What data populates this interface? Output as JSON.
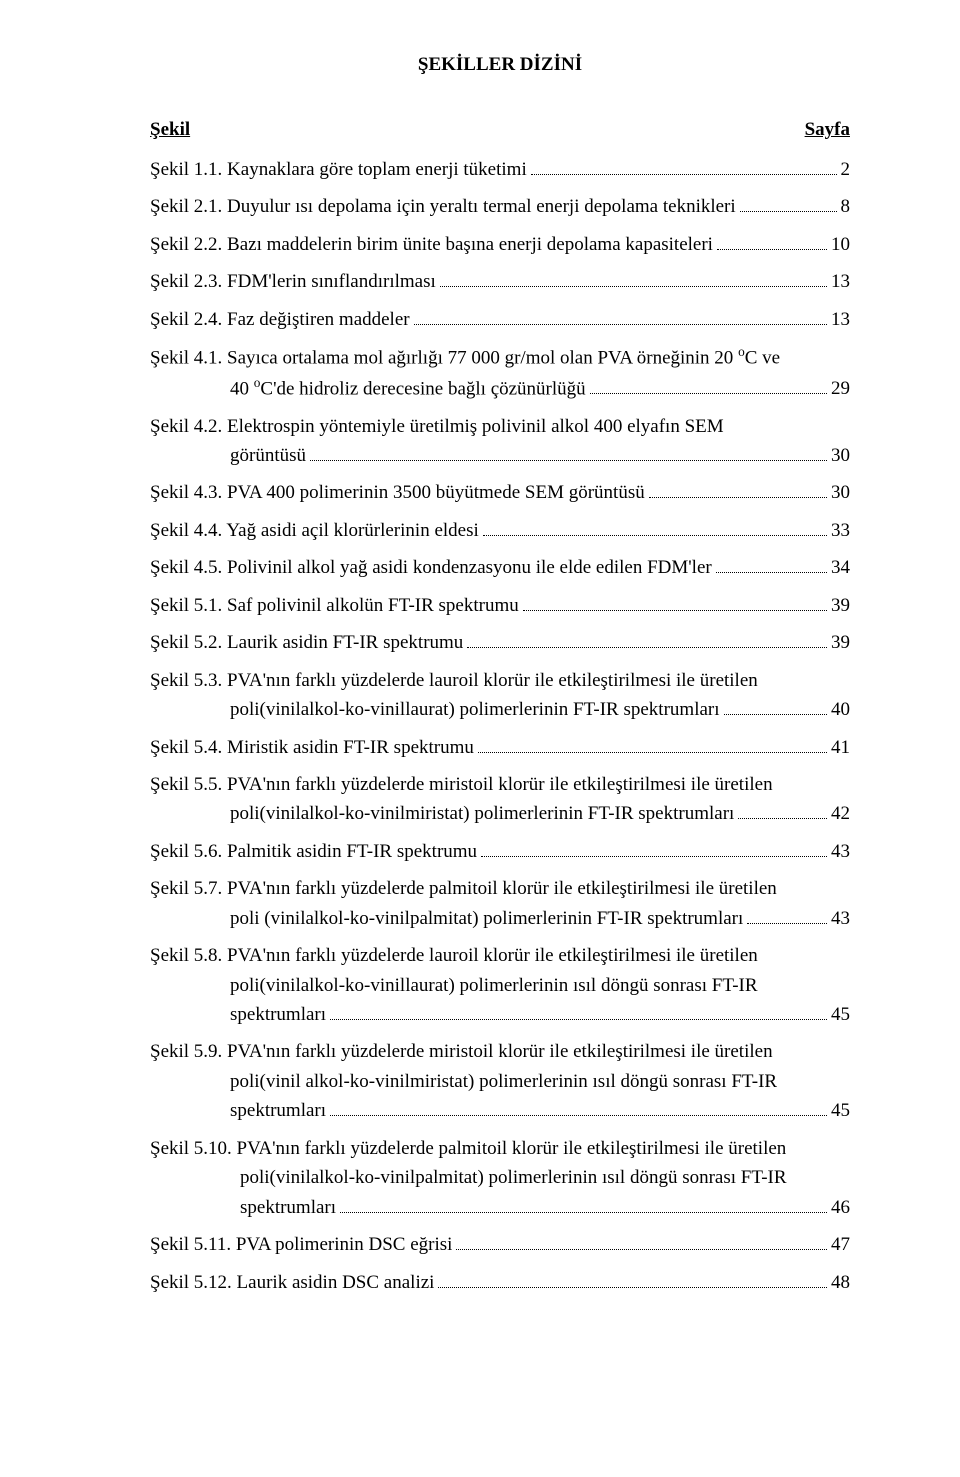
{
  "title": "ŞEKİLLER DİZİNİ",
  "header": {
    "left": "Şekil",
    "right": "Sayfa"
  },
  "entries": [
    {
      "label": "Şekil 1.1. Kaynaklara göre toplam enerji tüketimi",
      "page": "2"
    },
    {
      "label": "Şekil 2.1. Duyulur ısı depolama için yeraltı termal enerji depolama teknikleri",
      "page": "8"
    },
    {
      "label": "Şekil 2.2. Bazı maddelerin birim ünite başına enerji depolama kapasiteleri",
      "page": "10"
    },
    {
      "label": "Şekil 2.3. FDM'lerin sınıflandırılması",
      "page": "13"
    },
    {
      "label": "Şekil 2.4. Faz değiştiren maddeler",
      "page": "13"
    },
    {
      "label": "Şekil 4.1. Sayıca ortalama mol ağırlığı 77 000 gr/mol olan PVA örneğinin 20 ",
      "cont": [
        "40 °C'de hidroliz derecesine bağlı çözünürlüğü"
      ],
      "tailA": "°C ve",
      "page": "29",
      "special": "sup1"
    },
    {
      "label": "Şekil 4.2. Elektrospin yöntemiyle üretilmiş polivinil alkol 400 elyafın SEM",
      "cont": [
        "görüntüsü"
      ],
      "page": "30"
    },
    {
      "label": "Şekil 4.3. PVA 400 polimerinin 3500 büyütmede SEM görüntüsü",
      "page": "30"
    },
    {
      "label": "Şekil 4.4. Yağ asidi açil klorürlerinin eldesi",
      "page": "33"
    },
    {
      "label": "Şekil 4.5. Polivinil alkol yağ asidi kondenzasyonu ile elde edilen FDM'ler",
      "page": "34"
    },
    {
      "label": "Şekil 5.1. Saf polivinil alkolün FT-IR spektrumu",
      "page": "39"
    },
    {
      "label": "Şekil 5.2. Laurik asidin FT-IR spektrumu",
      "page": "39"
    },
    {
      "label": "Şekil 5.3. PVA'nın farklı yüzdelerde lauroil klorür ile etkileştirilmesi ile üretilen",
      "cont": [
        "poli(vinilalkol-ko-vinillaurat) polimerlerinin FT-IR spektrumları"
      ],
      "page": "40"
    },
    {
      "label": "Şekil 5.4. Miristik asidin FT-IR spektrumu",
      "page": "41"
    },
    {
      "label": "Şekil 5.5. PVA'nın farklı yüzdelerde miristoil klorür ile etkileştirilmesi ile üretilen",
      "cont": [
        "poli(vinilalkol-ko-vinilmiristat) polimerlerinin FT-IR spektrumları"
      ],
      "page": "42"
    },
    {
      "label": "Şekil 5.6. Palmitik asidin FT-IR spektrumu",
      "page": "43"
    },
    {
      "label": "Şekil 5.7. PVA'nın farklı yüzdelerde palmitoil klorür ile etkileştirilmesi ile üretilen",
      "cont": [
        "poli (vinilalkol-ko-vinilpalmitat) polimerlerinin FT-IR spektrumları"
      ],
      "page": "43"
    },
    {
      "label": "Şekil 5.8. PVA'nın farklı yüzdelerde lauroil klorür ile etkileştirilmesi ile üretilen",
      "cont": [
        "poli(vinilalkol-ko-vinillaurat) polimerlerinin ısıl döngü sonrası FT-IR",
        "spektrumları"
      ],
      "page": "45"
    },
    {
      "label": "Şekil 5.9. PVA'nın farklı yüzdelerde miristoil klorür ile etkileştirilmesi ile üretilen",
      "cont": [
        "poli(vinil alkol-ko-vinilmiristat) polimerlerinin ısıl döngü sonrası FT-IR",
        "spektrumları"
      ],
      "page": "45"
    },
    {
      "label": "Şekil 5.10. PVA'nın farklı yüzdelerde palmitoil klorür ile etkileştirilmesi ile üretilen",
      "cont": [
        "poli(vinilalkol-ko-vinilpalmitat) polimerlerinin ısıl döngü sonrası FT-IR",
        "spektrumları"
      ],
      "contIndent": 90,
      "page": "46"
    },
    {
      "label": "Şekil 5.11. PVA polimerinin DSC eğrisi",
      "page": "47"
    },
    {
      "label": "Şekil 5.12. Laurik asidin DSC analizi",
      "page": "48"
    }
  ]
}
